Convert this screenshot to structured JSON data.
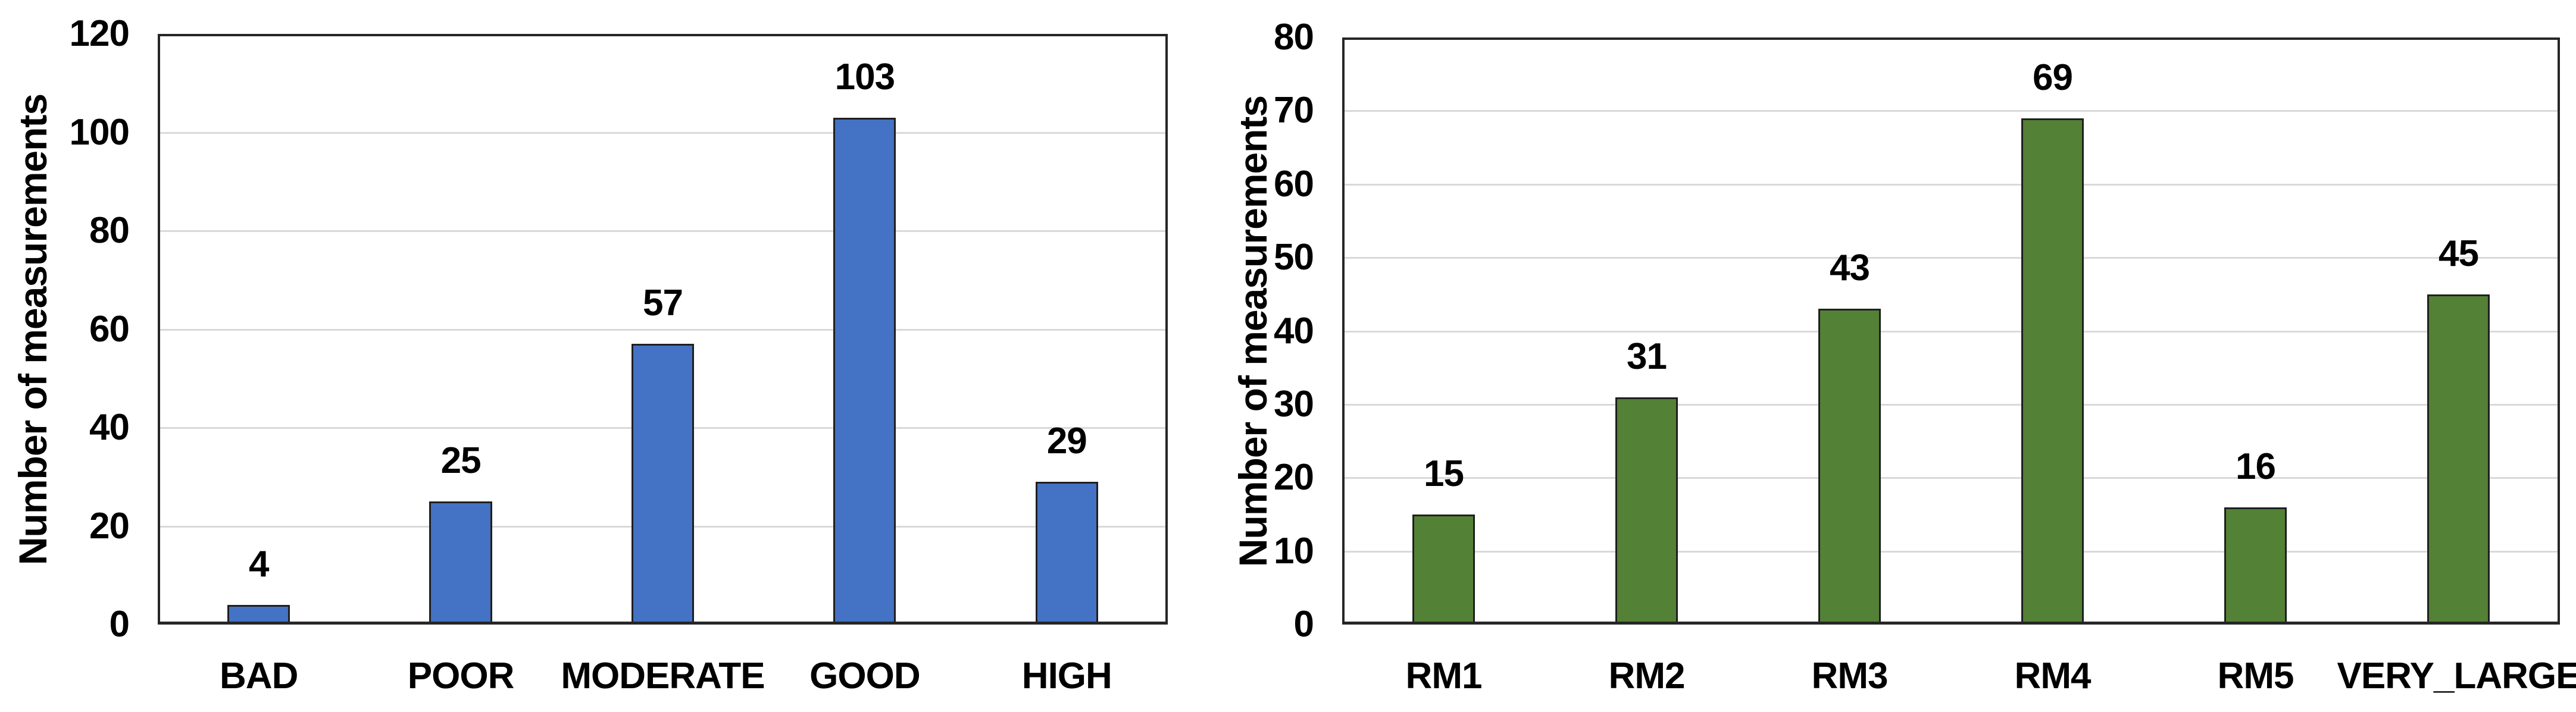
{
  "figure": {
    "background": "#ffffff",
    "text_color": "#000000",
    "grid_color": "#d9d9d9",
    "axis_color": "#262626"
  },
  "chart_data": [
    {
      "type": "bar",
      "title": "",
      "xlabel": "",
      "ylabel": "Number of measurements",
      "categories": [
        "BAD",
        "POOR",
        "MODERATE",
        "GOOD",
        "HIGH"
      ],
      "values": [
        4,
        25,
        57,
        103,
        29
      ],
      "data_labels": [
        "4",
        "25",
        "57",
        "103",
        "29"
      ],
      "ylim": [
        0,
        120
      ],
      "ytick_step": 20,
      "yticks": [
        "0",
        "20",
        "40",
        "60",
        "80",
        "100",
        "120"
      ],
      "grid": true,
      "legend": "none",
      "bar_color": "#4472C4",
      "bar_border_color": "#1f1f1f"
    },
    {
      "type": "bar",
      "title": "",
      "xlabel": "",
      "ylabel": "Number of measurements",
      "categories": [
        "RM1",
        "RM2",
        "RM3",
        "RM4",
        "RM5",
        "VERY_LARGE"
      ],
      "values": [
        15,
        31,
        43,
        69,
        16,
        45
      ],
      "data_labels": [
        "15",
        "31",
        "43",
        "69",
        "16",
        "45"
      ],
      "ylim": [
        0,
        80
      ],
      "ytick_step": 10,
      "yticks": [
        "0",
        "10",
        "20",
        "30",
        "40",
        "50",
        "60",
        "70",
        "80"
      ],
      "grid": true,
      "legend": "none",
      "bar_color": "#538135",
      "bar_border_color": "#1f1f1f"
    }
  ]
}
